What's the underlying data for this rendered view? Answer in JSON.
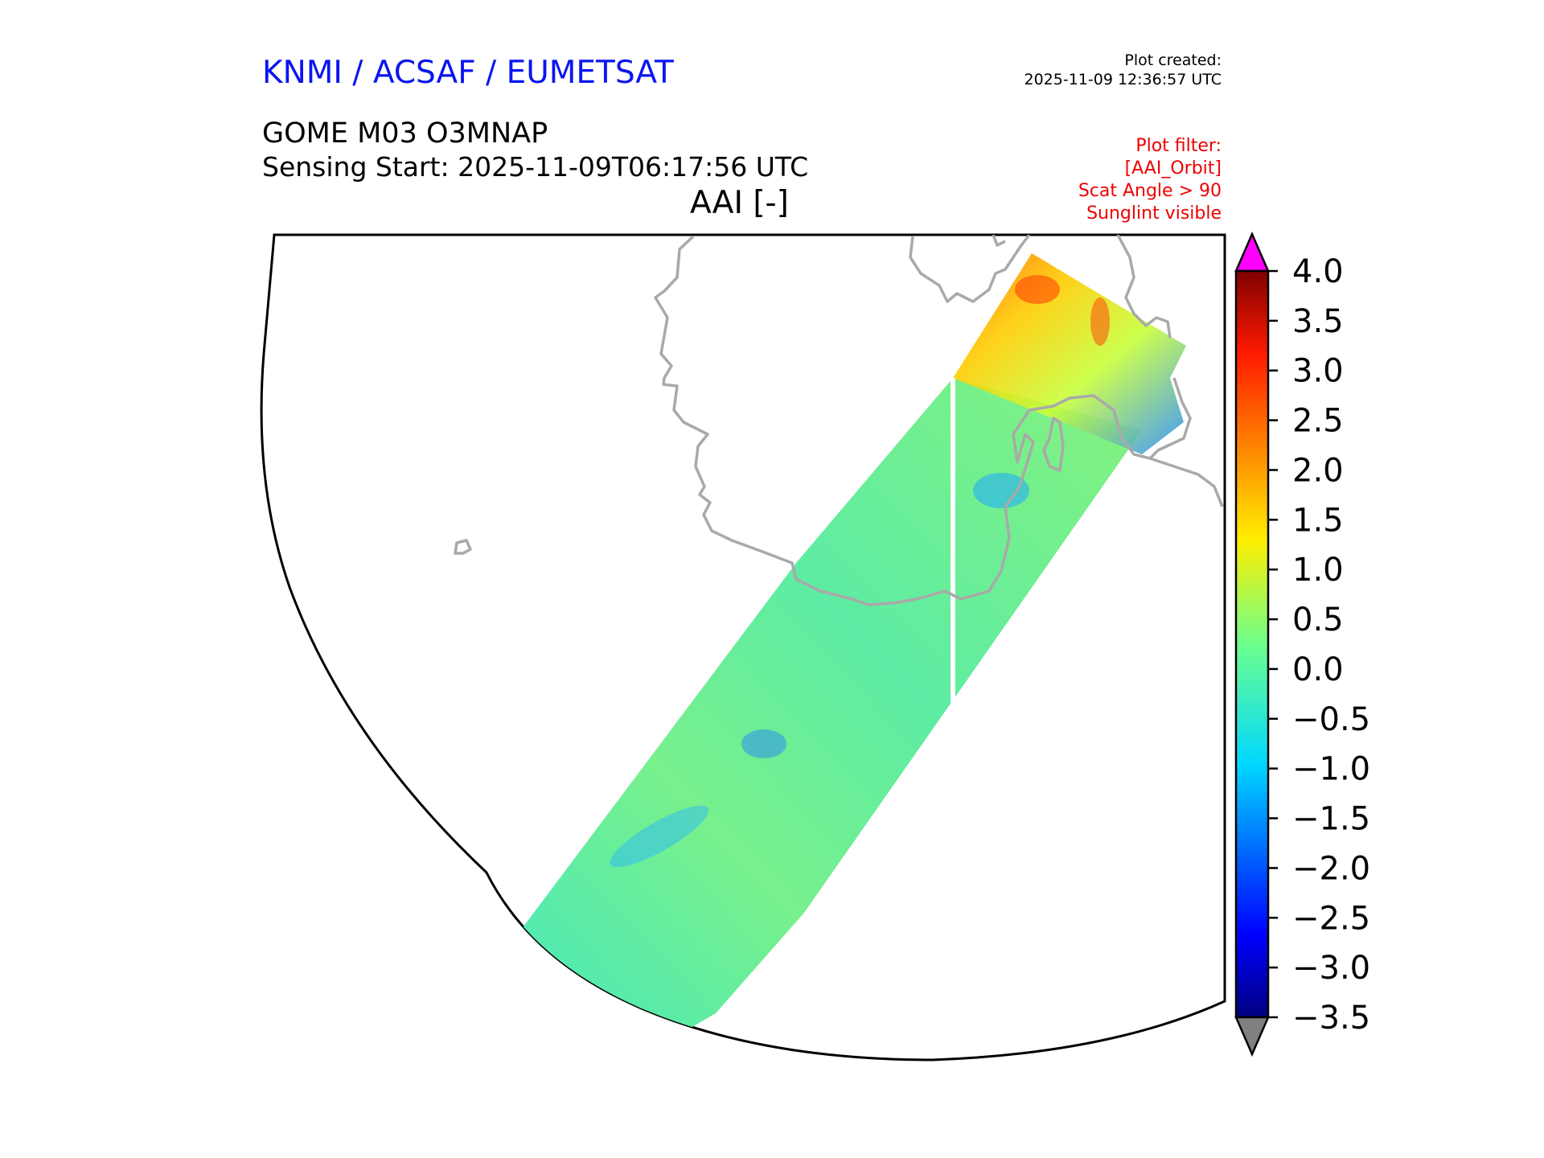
{
  "header": {
    "organisation": "KNMI / ACSAF / EUMETSAT",
    "plot_created_label": "Plot created:",
    "plot_created_time": "2025-11-09 12:36:57 UTC",
    "product": "GOME M03 O3MNAP",
    "sensing_start": "Sensing Start: 2025-11-09T06:17:56 UTC",
    "variable_title": "AAI [-]",
    "plot_filter": [
      "Plot filter:",
      "[AAI_Orbit]",
      "Scat Angle > 90",
      "Sunglint visible"
    ]
  },
  "colors": {
    "title_blue": "#0a14f0",
    "filter_red": "#ee0000",
    "coastline": "#a9a9a9",
    "over_range": "#ff00ff",
    "under_range": "#808080"
  },
  "colorbar": {
    "min": -3.5,
    "max": 4.0,
    "colormap": "jet",
    "ticks": [
      "4.0",
      "3.5",
      "3.0",
      "2.5",
      "2.0",
      "1.5",
      "1.0",
      "0.5",
      "0.0",
      "−0.5",
      "−1.0",
      "−1.5",
      "−2.0",
      "−2.5",
      "−3.0",
      "−3.5"
    ]
  }
}
